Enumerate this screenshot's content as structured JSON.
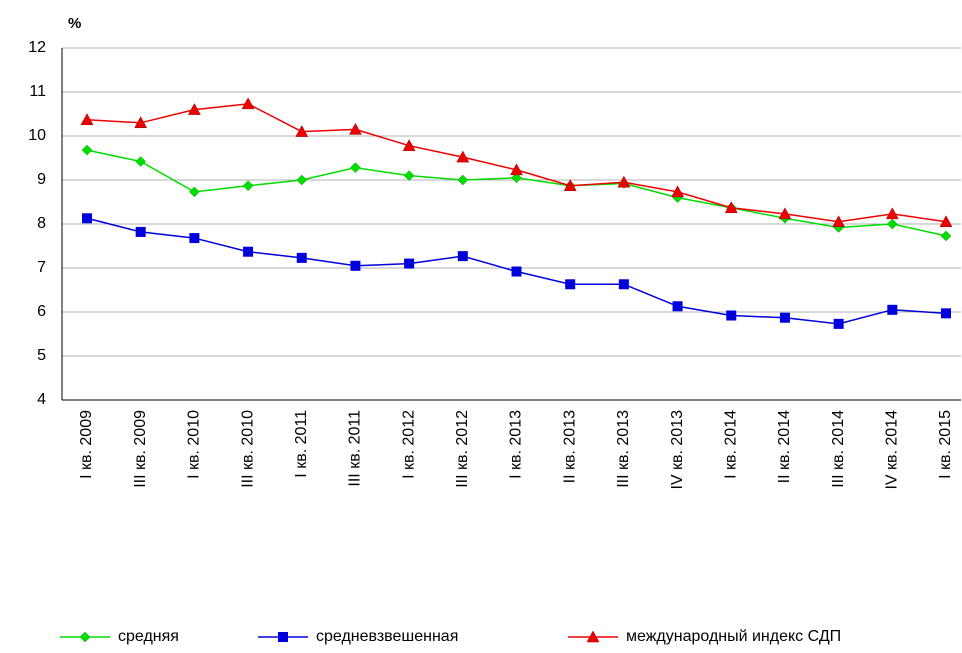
{
  "chart_data": {
    "type": "line",
    "y_label": "%",
    "categories": [
      "I кв. 2009",
      "III кв. 2009",
      "I кв. 2010",
      "III кв. 2010",
      "I кв. 2011",
      "III кв. 2011",
      "I кв. 2012",
      "III кв. 2012",
      "I кв. 2013",
      "II кв. 2013",
      "III кв. 2013",
      "IV кв. 2013",
      "I кв. 2014",
      "II кв. 2014",
      "III кв. 2014",
      "IV кв. 2014",
      "I кв. 2015"
    ],
    "series": [
      {
        "name": "средняя",
        "color": "#00dd00",
        "marker": "diamond",
        "values": [
          9.68,
          9.42,
          8.73,
          8.87,
          9.0,
          9.28,
          9.1,
          9.0,
          9.05,
          8.87,
          8.92,
          8.6,
          8.37,
          8.13,
          7.92,
          8.0,
          7.73
        ]
      },
      {
        "name": "средневзвешенная",
        "color": "#0000dd",
        "marker": "square",
        "values": [
          8.13,
          7.82,
          7.68,
          7.37,
          7.23,
          7.05,
          7.1,
          7.27,
          6.92,
          6.63,
          6.63,
          6.13,
          5.92,
          5.87,
          5.73,
          6.05,
          5.97
        ]
      },
      {
        "name": "международный индекс СДП",
        "color": "#ee0000",
        "marker": "triangle",
        "values": [
          10.37,
          10.3,
          10.6,
          10.73,
          10.1,
          10.15,
          9.78,
          9.52,
          9.23,
          8.87,
          8.95,
          8.73,
          8.37,
          8.23,
          8.05,
          8.23,
          8.05
        ]
      }
    ],
    "ylim": [
      4,
      12
    ],
    "yticks": [
      4,
      5,
      6,
      7,
      8,
      9,
      10,
      11,
      12
    ],
    "grid": true
  }
}
